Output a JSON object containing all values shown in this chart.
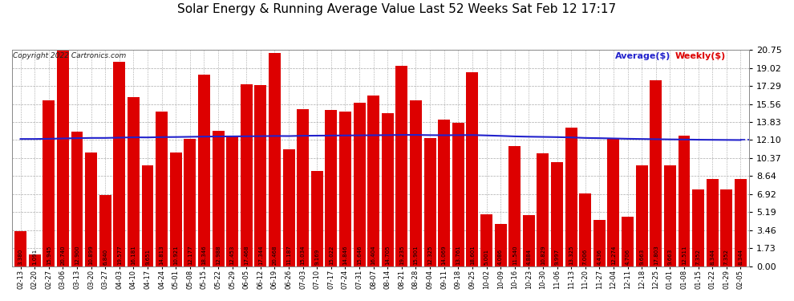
{
  "title": "Solar Energy & Running Average Value Last 52 Weeks Sat Feb 12 17:17",
  "copyright": "Copyright 2022 Cartronics.com",
  "legend_avg": "Average($)",
  "legend_weekly": "Weekly($)",
  "categories": [
    "02-13",
    "02-20",
    "02-27",
    "03-06",
    "03-13",
    "03-20",
    "03-27",
    "04-03",
    "04-10",
    "04-17",
    "04-24",
    "05-01",
    "05-08",
    "05-15",
    "05-22",
    "05-29",
    "06-05",
    "06-12",
    "06-19",
    "06-26",
    "07-03",
    "07-10",
    "07-17",
    "07-24",
    "07-31",
    "08-07",
    "08-14",
    "08-21",
    "08-28",
    "09-04",
    "09-11",
    "09-18",
    "09-25",
    "10-02",
    "10-09",
    "10-16",
    "10-23",
    "10-30",
    "11-06",
    "11-13",
    "11-20",
    "11-27",
    "12-04",
    "12-11",
    "12-18",
    "12-25",
    "01-01",
    "01-08",
    "01-15",
    "01-22",
    "01-29",
    "02-05"
  ],
  "weekly_values": [
    3.38,
    1.091,
    15.945,
    20.74,
    12.9,
    10.899,
    6.84,
    19.577,
    16.181,
    9.651,
    14.813,
    10.921,
    12.177,
    18.346,
    12.988,
    12.453,
    17.468,
    17.344,
    20.468,
    11.187,
    15.034,
    9.169,
    15.022,
    14.846,
    15.646,
    16.404,
    14.705,
    19.235,
    15.901,
    12.325,
    14.069,
    13.761,
    18.601,
    5.001,
    4.086,
    11.54,
    4.884,
    10.829,
    9.997,
    13.325,
    7.006,
    4.436,
    12.274,
    4.706,
    9.663,
    17.803,
    9.663,
    12.511,
    7.352,
    8.344,
    7.352,
    8.344
  ],
  "average_line": [
    12.2,
    12.2,
    12.22,
    12.25,
    12.28,
    12.3,
    12.3,
    12.33,
    12.36,
    12.35,
    12.38,
    12.39,
    12.41,
    12.43,
    12.44,
    12.45,
    12.46,
    12.47,
    12.49,
    12.48,
    12.51,
    12.52,
    12.53,
    12.54,
    12.55,
    12.56,
    12.57,
    12.59,
    12.59,
    12.57,
    12.56,
    12.57,
    12.58,
    12.54,
    12.5,
    12.45,
    12.42,
    12.4,
    12.38,
    12.35,
    12.3,
    12.28,
    12.25,
    12.22,
    12.2,
    12.18,
    12.16,
    12.15,
    12.13,
    12.12,
    12.11,
    12.1
  ],
  "bar_color": "#dd0000",
  "line_color": "#2222cc",
  "background_color": "#ffffff",
  "grid_color": "#aaaaaa",
  "yticks": [
    0.0,
    1.73,
    3.46,
    5.19,
    6.92,
    8.64,
    10.37,
    12.1,
    13.83,
    15.56,
    17.29,
    19.02,
    20.75
  ],
  "ylim_max": 20.75
}
